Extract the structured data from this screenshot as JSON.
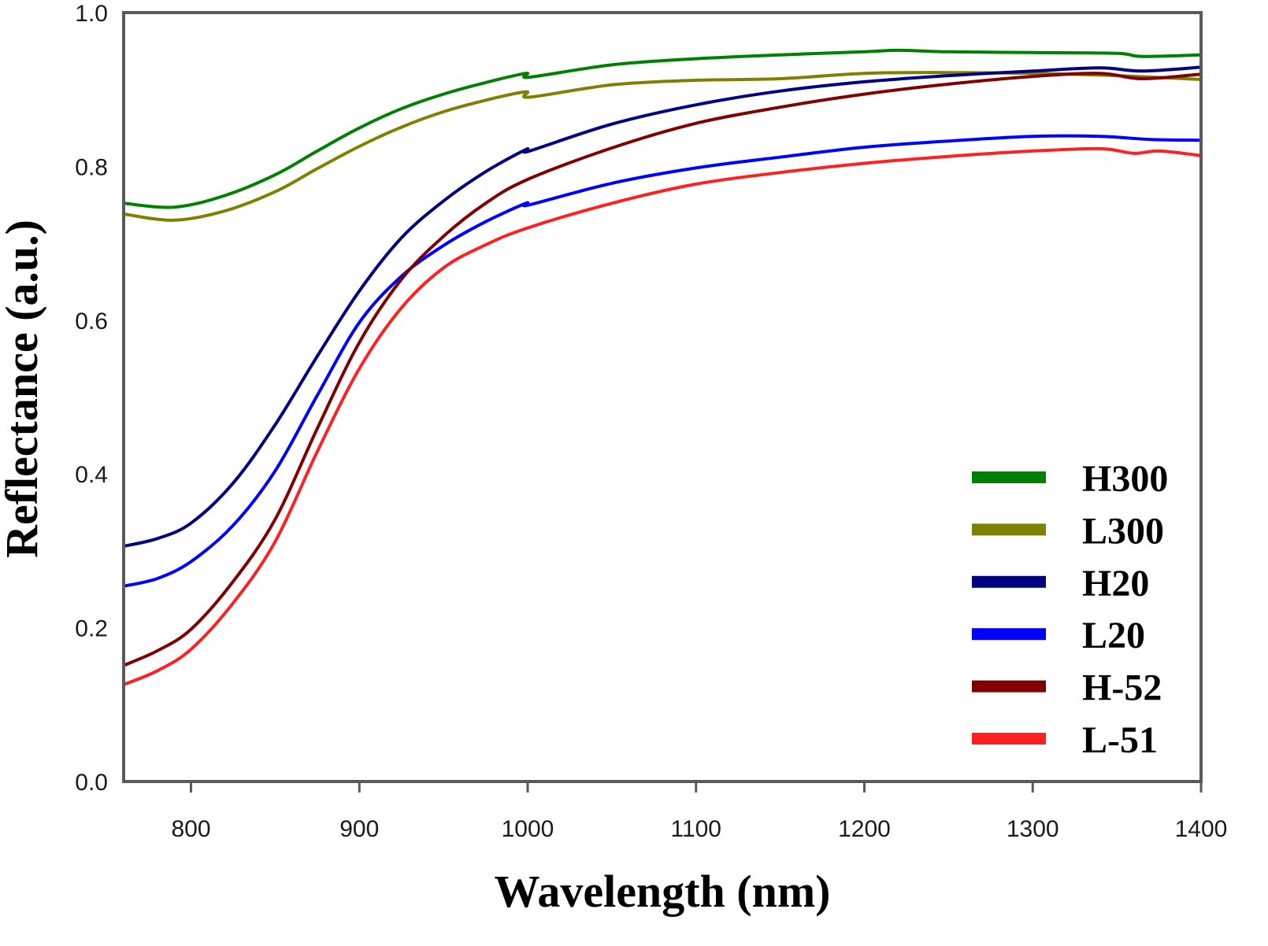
{
  "chart_data": {
    "type": "line",
    "title": "",
    "xlabel": "Wavelength (nm)",
    "ylabel": "Reflectance (a.u.)",
    "xlim": [
      760,
      1400
    ],
    "ylim": [
      0.0,
      1.0
    ],
    "xticks": [
      800,
      900,
      1000,
      1100,
      1200,
      1300,
      1400
    ],
    "xtick_labels": [
      "800",
      "900",
      "1000",
      "1100",
      "1200",
      "1300",
      "1400"
    ],
    "yticks": [
      0.0,
      0.2,
      0.4,
      0.6,
      0.8,
      1.0
    ],
    "ytick_labels": [
      "0.0",
      "0.2",
      "0.4",
      "0.6",
      "0.8",
      "1.0"
    ],
    "grid": false,
    "legend_position": "bottom-right",
    "series": [
      {
        "name": "H300",
        "color": "#008000",
        "x": [
          760,
          790,
          820,
          850,
          875,
          900,
          925,
          950,
          975,
          999,
          1001,
          1050,
          1100,
          1150,
          1200,
          1220,
          1250,
          1300,
          1350,
          1365,
          1400
        ],
        "y": [
          0.752,
          0.747,
          0.762,
          0.789,
          0.82,
          0.85,
          0.875,
          0.894,
          0.909,
          0.921,
          0.916,
          0.932,
          0.94,
          0.945,
          0.949,
          0.951,
          0.949,
          0.948,
          0.947,
          0.943,
          0.945
        ]
      },
      {
        "name": "L300",
        "color": "#808000",
        "x": [
          760,
          790,
          820,
          850,
          875,
          900,
          925,
          950,
          975,
          999,
          1001,
          1050,
          1100,
          1150,
          1200,
          1250,
          1300,
          1350,
          1400
        ],
        "y": [
          0.738,
          0.73,
          0.742,
          0.767,
          0.797,
          0.826,
          0.851,
          0.871,
          0.886,
          0.897,
          0.89,
          0.906,
          0.912,
          0.914,
          0.921,
          0.922,
          0.921,
          0.918,
          0.913
        ]
      },
      {
        "name": "H20",
        "color": "#000080",
        "x": [
          760,
          780,
          800,
          825,
          850,
          875,
          900,
          925,
          950,
          975,
          999,
          1001,
          1050,
          1100,
          1150,
          1200,
          1250,
          1300,
          1340,
          1365,
          1400
        ],
        "y": [
          0.306,
          0.316,
          0.336,
          0.388,
          0.464,
          0.553,
          0.638,
          0.707,
          0.755,
          0.793,
          0.822,
          0.82,
          0.855,
          0.88,
          0.898,
          0.91,
          0.918,
          0.924,
          0.928,
          0.924,
          0.929
        ]
      },
      {
        "name": "L20",
        "color": "#0000ff",
        "x": [
          760,
          780,
          800,
          825,
          850,
          875,
          900,
          925,
          950,
          975,
          999,
          1001,
          1050,
          1100,
          1150,
          1200,
          1250,
          1300,
          1340,
          1370,
          1400
        ],
        "y": [
          0.254,
          0.264,
          0.286,
          0.333,
          0.404,
          0.502,
          0.597,
          0.657,
          0.697,
          0.728,
          0.752,
          0.75,
          0.778,
          0.798,
          0.812,
          0.825,
          0.833,
          0.839,
          0.839,
          0.835,
          0.834
        ]
      },
      {
        "name": "H-52",
        "color": "#800000",
        "x": [
          760,
          780,
          800,
          825,
          850,
          875,
          900,
          925,
          950,
          975,
          1000,
          1050,
          1100,
          1150,
          1200,
          1250,
          1300,
          1340,
          1365,
          1400
        ],
        "y": [
          0.151,
          0.17,
          0.198,
          0.26,
          0.341,
          0.459,
          0.571,
          0.653,
          0.709,
          0.752,
          0.783,
          0.824,
          0.856,
          0.877,
          0.894,
          0.907,
          0.917,
          0.921,
          0.914,
          0.92
        ]
      },
      {
        "name": "L-51",
        "color": "#ff2020",
        "x": [
          760,
          780,
          800,
          825,
          850,
          875,
          900,
          925,
          950,
          975,
          1000,
          1050,
          1100,
          1150,
          1200,
          1250,
          1300,
          1340,
          1360,
          1375,
          1400
        ],
        "y": [
          0.126,
          0.144,
          0.172,
          0.232,
          0.312,
          0.429,
          0.537,
          0.616,
          0.668,
          0.698,
          0.72,
          0.752,
          0.777,
          0.792,
          0.804,
          0.813,
          0.82,
          0.823,
          0.817,
          0.82,
          0.814
        ]
      }
    ]
  }
}
